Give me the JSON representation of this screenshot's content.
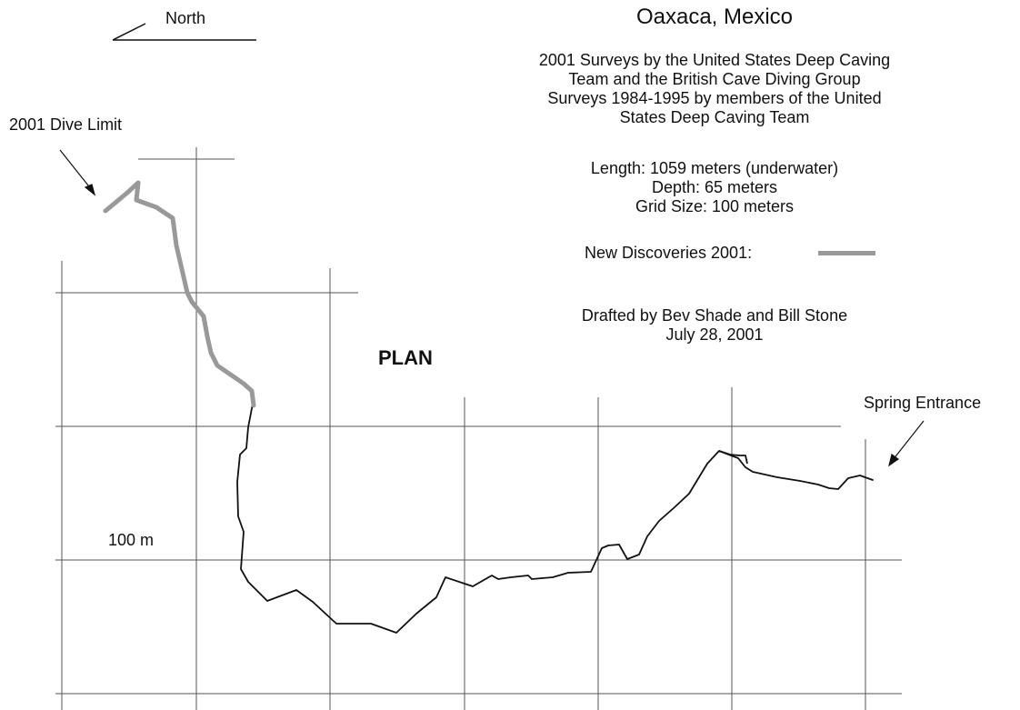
{
  "map": {
    "title": "Oaxaca, Mexico",
    "credits_lines": [
      "2001 Surveys by the United States Deep Caving",
      "Team and the British Cave Diving Group",
      "Surveys 1984-1995 by members of the United",
      "States Deep Caving Team"
    ],
    "stats_lines": [
      "Length: 1059 meters (underwater)",
      "Depth: 65 meters",
      "Grid Size: 100 meters"
    ],
    "legend": {
      "label": "New Discoveries 2001:",
      "color": "#999999"
    },
    "drafted_lines": [
      "Drafted by Bev Shade and Bill Stone",
      "July 28, 2001"
    ],
    "view_label": "PLAN",
    "north_label": "North",
    "dive_limit_label": "2001 Dive Limit",
    "entrance_label": "Spring Entrance",
    "scale_label": "100 m",
    "survey_line_color": "#111111",
    "grid_color": "#555555"
  }
}
